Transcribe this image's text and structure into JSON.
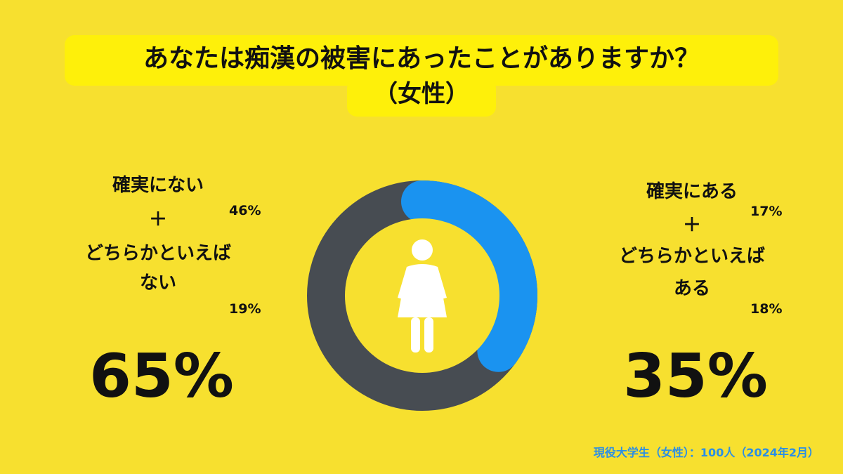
{
  "title": "あなたは痴漢の被害にあったことがありますか？",
  "subtitle": "（女性）",
  "left": {
    "line1": "確実にない",
    "plus": "＋",
    "line2": "どちらかといえば",
    "line3": "ない",
    "pct_top": "46%",
    "pct_bottom": "19%",
    "total": "65%"
  },
  "right": {
    "line1": "確実にある",
    "plus": "＋",
    "line2": "どちらかといえば",
    "line3": "ある",
    "pct_top": "17%",
    "pct_bottom": "18%",
    "total": "35%"
  },
  "source": "現役大学生（女性）：100人（2024年2月）",
  "center_icon": "woman-icon",
  "colors": {
    "background": "#f7e02f",
    "title_highlight": "#fef00a",
    "no_segment": "#474c52",
    "yes_segment": "#1a93f0",
    "source_text": "#2a8ee6"
  },
  "chart_data": {
    "type": "pie",
    "donut": true,
    "categories": [
      "ない",
      "ある"
    ],
    "values": [
      65,
      35
    ],
    "title": "あなたは痴漢の被害にあったことがありますか？",
    "subtitle": "（女性）",
    "breakdown": {
      "ない": [
        {
          "label": "確実にない",
          "value": 46
        },
        {
          "label": "どちらかといえばない",
          "value": 19
        }
      ],
      "ある": [
        {
          "label": "確実にある",
          "value": 17
        },
        {
          "label": "どちらかといえばある",
          "value": 18
        }
      ]
    }
  }
}
